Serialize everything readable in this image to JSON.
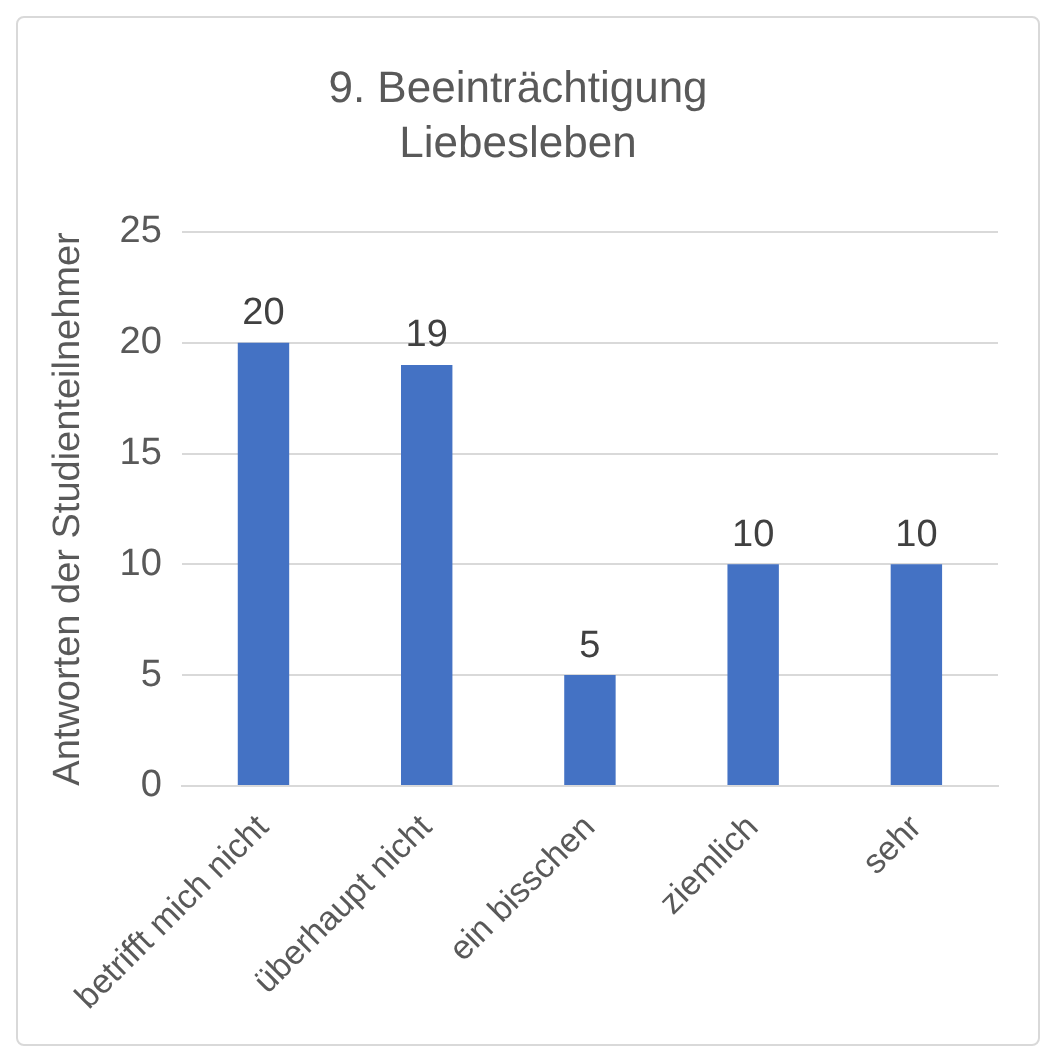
{
  "chart_data": {
    "type": "bar",
    "title": "9. Beeinträchtigung\nLiebesleben",
    "ylabel": "Antworten der Studienteilnehmer",
    "categories": [
      "betrifft mich nicht",
      "überhaupt nicht",
      "ein bisschen",
      "ziemlich",
      "sehr"
    ],
    "values": [
      20,
      19,
      5,
      10,
      10
    ],
    "color": "#4472c4",
    "ylim": [
      0,
      25
    ],
    "yticks": [
      0,
      5,
      10,
      15,
      20,
      25
    ],
    "grid": "y",
    "data_labels": true,
    "legend": false
  }
}
